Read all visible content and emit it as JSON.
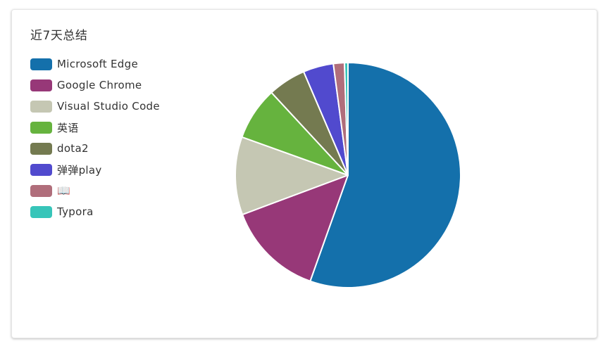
{
  "title": "近7天总结",
  "chart_data": {
    "type": "pie",
    "title": "近7天总结",
    "legend_position": "top-left",
    "slices": [
      {
        "label": "Microsoft Edge",
        "value": 56.0,
        "color": "#1470ab"
      },
      {
        "label": "Google Chrome",
        "value": 14.0,
        "color": "#973878"
      },
      {
        "label": "Visual Studio Code",
        "value": 11.3,
        "color": "#c5c7b3"
      },
      {
        "label": "英语",
        "value": 7.7,
        "color": "#66b33e"
      },
      {
        "label": "dota2",
        "value": 5.5,
        "color": "#747a50"
      },
      {
        "label": "弹弹play",
        "value": 4.4,
        "color": "#514ace"
      },
      {
        "label": "📖",
        "value": 1.6,
        "color": "#b06e7b"
      },
      {
        "label": "Typora",
        "value": 0.5,
        "color": "#37c5b9"
      }
    ]
  }
}
